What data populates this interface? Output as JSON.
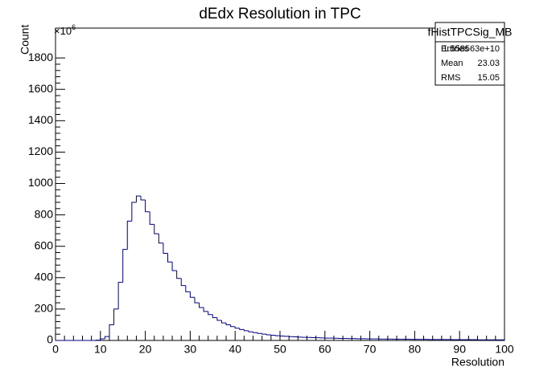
{
  "chart_data": {
    "type": "histogram",
    "title": "dEdx Resolution in TPC",
    "x_label": "Resolution",
    "y_label": "Count",
    "y_multiplier": {
      "base": "×10",
      "exponent": "6"
    },
    "color": "#000080",
    "bins": [
      0,
      1,
      2,
      3,
      4,
      5,
      6,
      7,
      8,
      9,
      10,
      11,
      12,
      13,
      14,
      15,
      16,
      17,
      18,
      19,
      20,
      21,
      22,
      23,
      24,
      25,
      26,
      27,
      28,
      29,
      30,
      31,
      32,
      33,
      34,
      35,
      36,
      37,
      38,
      39,
      40,
      41,
      42,
      43,
      44,
      45,
      46,
      47,
      48,
      49,
      50,
      51,
      52,
      53,
      54,
      55,
      56,
      57,
      58,
      59,
      60,
      61,
      62,
      63,
      64,
      65,
      66,
      67,
      68,
      69,
      70,
      71,
      72,
      73,
      74,
      75,
      76,
      77,
      78,
      79,
      80,
      81,
      82,
      83,
      84,
      85,
      86,
      87,
      88,
      89,
      90,
      91,
      92,
      93,
      94,
      95,
      96,
      97,
      98,
      99,
      100
    ],
    "values": [
      0,
      0,
      0,
      0,
      0,
      0,
      0,
      0,
      0,
      2,
      10,
      25,
      100,
      200,
      370,
      580,
      760,
      880,
      920,
      895,
      820,
      740,
      680,
      620,
      555,
      500,
      445,
      395,
      350,
      310,
      275,
      240,
      210,
      185,
      165,
      145,
      128,
      112,
      100,
      88,
      78,
      70,
      62,
      55,
      50,
      45,
      40,
      36,
      33,
      30,
      28,
      26,
      24,
      23,
      21,
      20,
      19,
      18,
      17,
      16,
      15,
      15,
      14,
      13,
      13,
      12,
      12,
      11,
      11,
      10,
      10,
      10,
      9,
      9,
      9,
      8,
      8,
      8,
      8,
      7,
      7,
      7,
      7,
      6,
      6,
      6,
      6,
      6,
      5,
      5,
      5,
      5,
      5,
      5,
      4,
      4,
      4,
      4,
      4,
      4
    ],
    "xlim": [
      0,
      100
    ],
    "xticks": [
      0,
      10,
      20,
      30,
      40,
      50,
      60,
      70,
      80,
      90,
      100
    ],
    "ylim": [
      0,
      1990
    ],
    "yticks": [
      0,
      200,
      400,
      600,
      800,
      1000,
      1200,
      1400,
      1600,
      1800
    ],
    "stats": {
      "title": "fHistTPCSig_MB",
      "rows": [
        [
          "Entries",
          "1.558563e+10"
        ],
        [
          "Mean",
          "23.03"
        ],
        [
          "RMS",
          "15.05"
        ]
      ]
    }
  }
}
